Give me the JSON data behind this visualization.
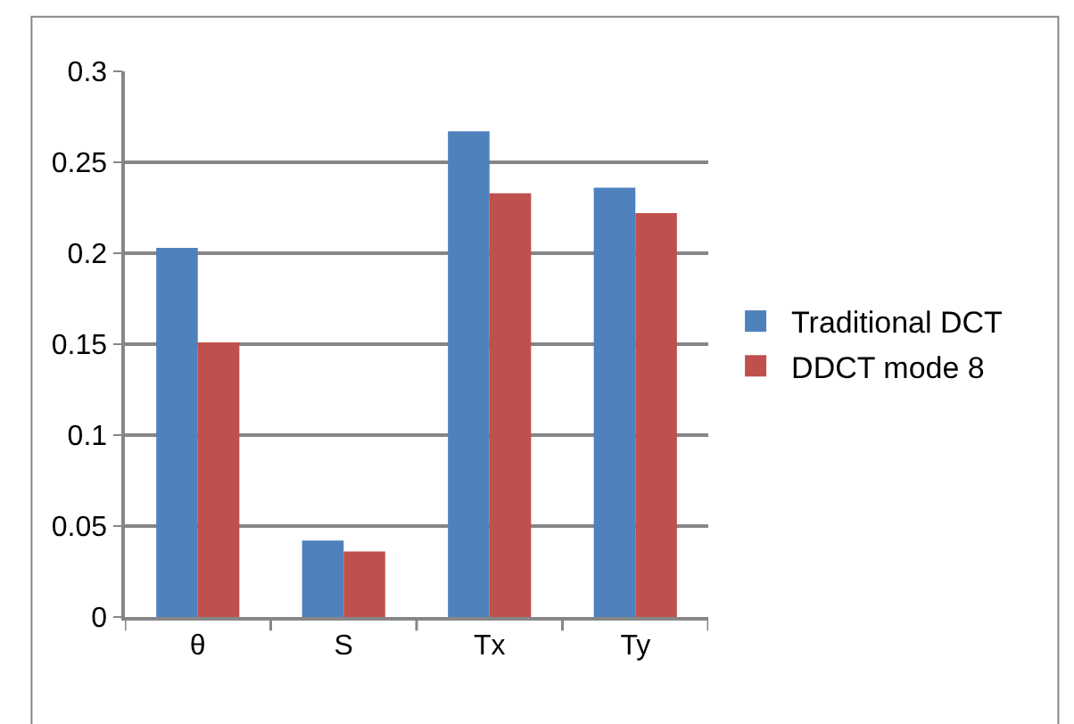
{
  "chart_data": {
    "type": "bar",
    "categories": [
      "θ",
      "S",
      "Tx",
      "Ty"
    ],
    "series": [
      {
        "name": "Traditional DCT",
        "color": "#4f81bd",
        "values": [
          0.203,
          0.042,
          0.267,
          0.236
        ]
      },
      {
        "name": "DDCT mode 8",
        "color": "#c0504d",
        "values": [
          0.151,
          0.036,
          0.233,
          0.222
        ]
      }
    ],
    "ylim": [
      0,
      0.3
    ],
    "yticks": [
      0,
      0.05,
      0.1,
      0.15,
      0.2,
      0.25,
      0.3
    ],
    "grid": "y",
    "legend": "right"
  }
}
